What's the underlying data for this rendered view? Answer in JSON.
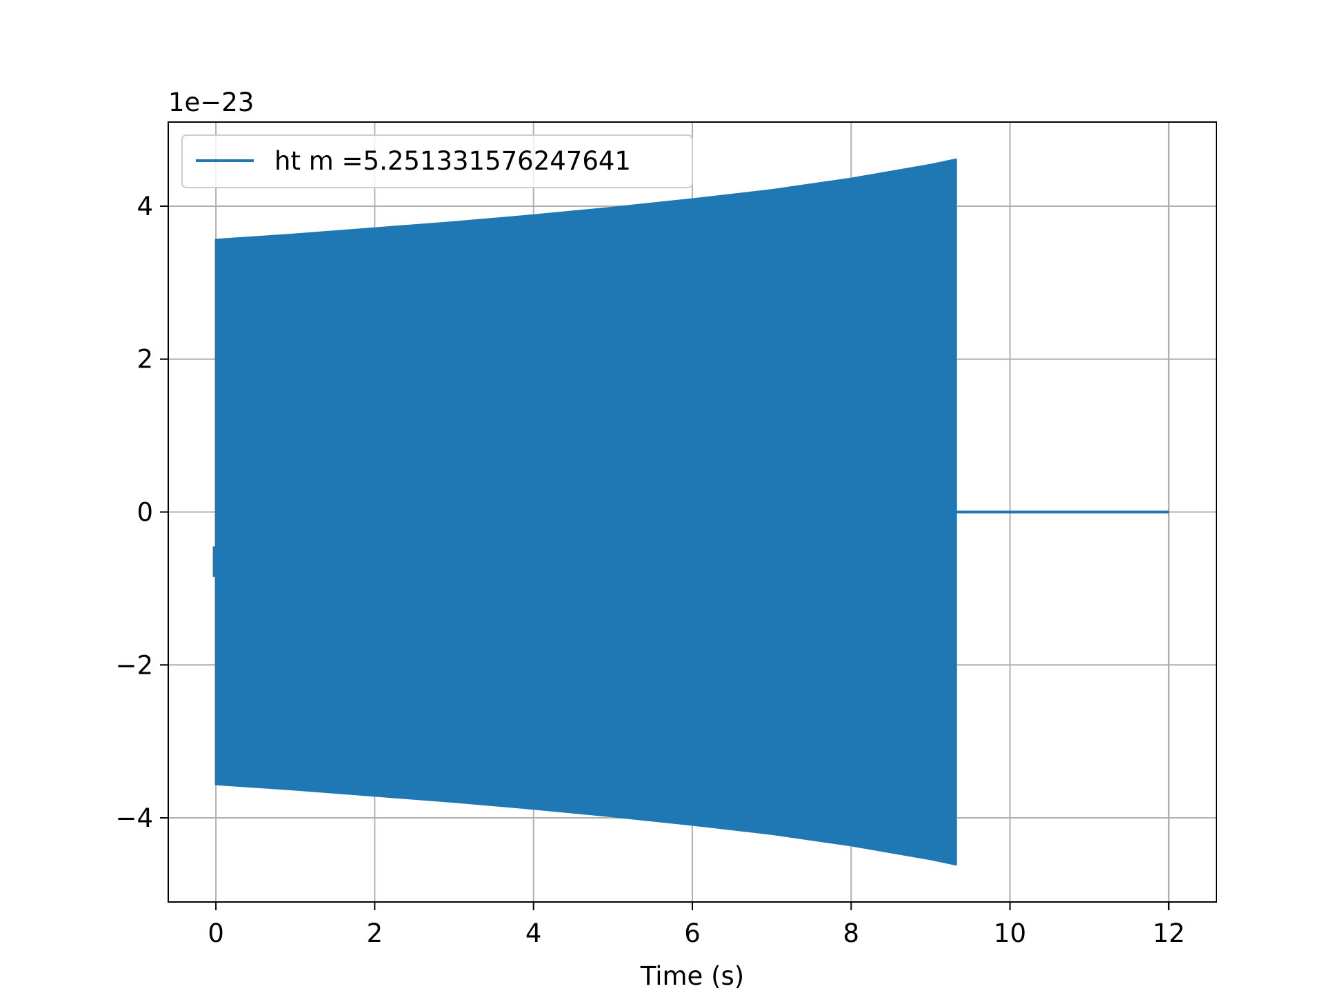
{
  "chart_data": {
    "type": "line",
    "title": "",
    "xlabel": "Time (s)",
    "ylabel": "",
    "offset_label": "1e−23",
    "xlim": [
      -0.6,
      12.6
    ],
    "ylim": [
      -5.1,
      5.1
    ],
    "xticks": [
      0,
      2,
      4,
      6,
      8,
      10,
      12
    ],
    "xtick_labels": [
      "0",
      "2",
      "4",
      "6",
      "8",
      "10",
      "12"
    ],
    "yticks": [
      -4,
      -2,
      0,
      2,
      4
    ],
    "ytick_labels": [
      "−4",
      "−2",
      "0",
      "2",
      "4"
    ],
    "grid": true,
    "legend_position": "upper-left",
    "series": [
      {
        "name": "ht m =5.251331576247641",
        "color": "#1f77b4",
        "envelope": {
          "x": [
            0.0,
            1.0,
            2.0,
            3.0,
            4.0,
            5.0,
            6.0,
            7.0,
            8.0,
            9.0,
            9.32
          ],
          "upper": [
            3.56,
            3.63,
            3.71,
            3.79,
            3.88,
            3.98,
            4.09,
            4.21,
            4.36,
            4.54,
            4.61
          ],
          "lower": [
            -3.56,
            -3.63,
            -3.71,
            -3.79,
            -3.88,
            -3.98,
            -4.09,
            -4.21,
            -4.36,
            -4.54,
            -4.61
          ]
        },
        "signal_end_x": 9.32,
        "flat_segment": {
          "x": [
            9.32,
            12.0
          ],
          "y": [
            0,
            0
          ]
        }
      }
    ]
  }
}
